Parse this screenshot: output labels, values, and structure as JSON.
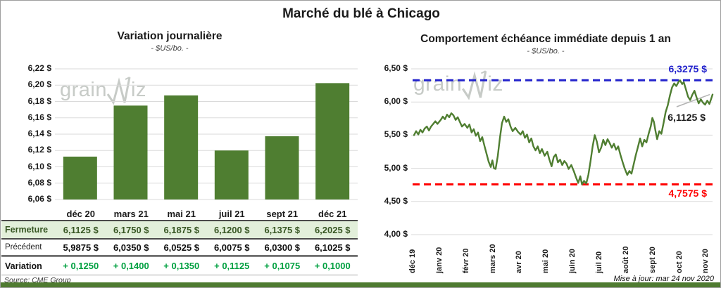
{
  "page": {
    "title": "Marché du blé à Chicago",
    "source": "Source: CME Group",
    "updated": "Mise à jour: mar 24 nov 2020",
    "watermark": {
      "part1": "grain",
      "part2": "iz"
    }
  },
  "colors": {
    "bar_green": "#4f7e31",
    "line_green": "#4f7e31",
    "upper_bound_blue": "#2222cc",
    "lower_bound_red": "#ff0000",
    "fermeture_row_bg": "#e2efda",
    "fermeture_text": "#375623",
    "variation_text": "#00a040",
    "gridline": "#dadada",
    "watermark_gray": "#c7cbc7"
  },
  "table": {
    "columns": [
      "déc 20",
      "mars 21",
      "mai 21",
      "juil 21",
      "sept 21",
      "déc 21"
    ],
    "rows": [
      {
        "label": "Fermeture",
        "values": [
          "6,1125 $",
          "6,1750 $",
          "6,1875 $",
          "6,1200 $",
          "6,1375 $",
          "6,2025 $"
        ]
      },
      {
        "label": "Précédent",
        "values": [
          "5,9875 $",
          "6,0350 $",
          "6,0525 $",
          "6,0075 $",
          "6,0300 $",
          "6,1025 $"
        ]
      },
      {
        "label": "Variation",
        "values": [
          "+ 0,1250",
          "+ 0,1400",
          "+ 0,1350",
          "+ 0,1125",
          "+ 0,1075",
          "+ 0,1000"
        ]
      }
    ]
  },
  "chart_data": [
    {
      "type": "bar",
      "title": "Variation journalière",
      "subtitle": "- $US/bo. -",
      "categories": [
        "déc 20",
        "mars 21",
        "mai 21",
        "juil 21",
        "sept 21",
        "déc 21"
      ],
      "values": [
        6.1125,
        6.175,
        6.1875,
        6.12,
        6.1375,
        6.2025
      ],
      "ylabel": "$US/bo.",
      "ylim": [
        6.06,
        6.22
      ],
      "grid": true,
      "yticks": [
        {
          "v": 6.22,
          "label": "6,22 $"
        },
        {
          "v": 6.2,
          "label": "6,20 $"
        },
        {
          "v": 6.18,
          "label": "6,18 $"
        },
        {
          "v": 6.16,
          "label": "6,16 $"
        },
        {
          "v": 6.14,
          "label": "6,14 $"
        },
        {
          "v": 6.12,
          "label": "6,12 $"
        },
        {
          "v": 6.1,
          "label": "6,10 $"
        },
        {
          "v": 6.08,
          "label": "6,08 $"
        },
        {
          "v": 6.06,
          "label": "6,06 $"
        }
      ]
    },
    {
      "type": "line",
      "title": "Comportement échéance immédiate depuis 1 an",
      "subtitle": "- $US/bo. -",
      "ylabel": "$US/bo.",
      "ylim": [
        4.0,
        6.5
      ],
      "xlim_months": [
        0,
        11.2
      ],
      "grid": true,
      "yticks": [
        {
          "v": 6.5,
          "label": "6,50 $"
        },
        {
          "v": 6.0,
          "label": "6,00 $"
        },
        {
          "v": 5.5,
          "label": "5,50 $"
        },
        {
          "v": 5.0,
          "label": "5,00 $"
        },
        {
          "v": 4.5,
          "label": "4,50 $"
        },
        {
          "v": 4.0,
          "label": "4,00 $"
        }
      ],
      "xticks": [
        {
          "m": 0,
          "label": "déc 19"
        },
        {
          "m": 1,
          "label": "janv 20"
        },
        {
          "m": 2,
          "label": "févr 20"
        },
        {
          "m": 3,
          "label": "mars 20"
        },
        {
          "m": 4,
          "label": "avr 20"
        },
        {
          "m": 5,
          "label": "mai 20"
        },
        {
          "m": 6,
          "label": "juin 20"
        },
        {
          "m": 7,
          "label": "juil 20"
        },
        {
          "m": 8,
          "label": "août 20"
        },
        {
          "m": 9,
          "label": "sept 20"
        },
        {
          "m": 10,
          "label": "oct 20"
        },
        {
          "m": 11,
          "label": "nov 20"
        }
      ],
      "ref_lines": [
        {
          "v": 6.3275,
          "label": "6,3275 $",
          "color": "#2222cc",
          "position": "max"
        },
        {
          "v": 4.7575,
          "label": "4,7575 $",
          "color": "#ff0000",
          "position": "min"
        }
      ],
      "last_label": {
        "v": 6.1125,
        "label": "6,1125 $"
      },
      "points": [
        [
          0,
          5.5
        ],
        [
          0.08,
          5.56
        ],
        [
          0.16,
          5.51
        ],
        [
          0.24,
          5.58
        ],
        [
          0.32,
          5.54
        ],
        [
          0.4,
          5.6
        ],
        [
          0.48,
          5.63
        ],
        [
          0.56,
          5.57
        ],
        [
          0.64,
          5.63
        ],
        [
          0.72,
          5.67
        ],
        [
          0.8,
          5.71
        ],
        [
          0.88,
          5.67
        ],
        [
          1.0,
          5.73
        ],
        [
          1.08,
          5.78
        ],
        [
          1.16,
          5.74
        ],
        [
          1.24,
          5.81
        ],
        [
          1.32,
          5.77
        ],
        [
          1.4,
          5.83
        ],
        [
          1.48,
          5.8
        ],
        [
          1.56,
          5.73
        ],
        [
          1.64,
          5.77
        ],
        [
          1.72,
          5.7
        ],
        [
          1.8,
          5.63
        ],
        [
          1.9,
          5.67
        ],
        [
          2.0,
          5.61
        ],
        [
          2.08,
          5.66
        ],
        [
          2.16,
          5.54
        ],
        [
          2.24,
          5.59
        ],
        [
          2.32,
          5.49
        ],
        [
          2.4,
          5.54
        ],
        [
          2.48,
          5.41
        ],
        [
          2.56,
          5.47
        ],
        [
          2.64,
          5.34
        ],
        [
          2.72,
          5.22
        ],
        [
          2.8,
          5.1
        ],
        [
          2.88,
          5.02
        ],
        [
          2.94,
          5.12
        ],
        [
          3.0,
          5.0
        ],
        [
          3.06,
          4.99
        ],
        [
          3.14,
          5.18
        ],
        [
          3.22,
          5.45
        ],
        [
          3.3,
          5.68
        ],
        [
          3.38,
          5.78
        ],
        [
          3.46,
          5.7
        ],
        [
          3.54,
          5.74
        ],
        [
          3.62,
          5.63
        ],
        [
          3.7,
          5.56
        ],
        [
          3.8,
          5.61
        ],
        [
          3.9,
          5.55
        ],
        [
          4.0,
          5.51
        ],
        [
          4.08,
          5.56
        ],
        [
          4.16,
          5.46
        ],
        [
          4.24,
          5.51
        ],
        [
          4.32,
          5.39
        ],
        [
          4.4,
          5.45
        ],
        [
          4.48,
          5.33
        ],
        [
          4.56,
          5.27
        ],
        [
          4.64,
          5.33
        ],
        [
          4.72,
          5.23
        ],
        [
          4.8,
          5.29
        ],
        [
          4.9,
          5.19
        ],
        [
          5.0,
          5.25
        ],
        [
          5.08,
          5.13
        ],
        [
          5.16,
          5.03
        ],
        [
          5.24,
          5.17
        ],
        [
          5.32,
          5.21
        ],
        [
          5.4,
          5.09
        ],
        [
          5.48,
          5.13
        ],
        [
          5.56,
          5.05
        ],
        [
          5.64,
          5.11
        ],
        [
          5.72,
          5.07
        ],
        [
          5.8,
          4.99
        ],
        [
          5.9,
          5.05
        ],
        [
          6.0,
          4.95
        ],
        [
          6.08,
          4.86
        ],
        [
          6.16,
          4.78
        ],
        [
          6.24,
          4.88
        ],
        [
          6.3,
          4.758
        ],
        [
          6.38,
          4.81
        ],
        [
          6.46,
          4.77
        ],
        [
          6.54,
          4.9
        ],
        [
          6.62,
          5.1
        ],
        [
          6.7,
          5.33
        ],
        [
          6.78,
          5.5
        ],
        [
          6.86,
          5.4
        ],
        [
          6.94,
          5.24
        ],
        [
          7.02,
          5.31
        ],
        [
          7.1,
          5.43
        ],
        [
          7.18,
          5.35
        ],
        [
          7.26,
          5.44
        ],
        [
          7.34,
          5.38
        ],
        [
          7.42,
          5.31
        ],
        [
          7.5,
          5.37
        ],
        [
          7.58,
          5.28
        ],
        [
          7.66,
          5.33
        ],
        [
          7.74,
          5.21
        ],
        [
          7.82,
          5.1
        ],
        [
          7.9,
          5.0
        ],
        [
          8.0,
          4.9
        ],
        [
          8.08,
          4.96
        ],
        [
          8.16,
          4.92
        ],
        [
          8.24,
          5.06
        ],
        [
          8.32,
          5.2
        ],
        [
          8.4,
          5.32
        ],
        [
          8.48,
          5.45
        ],
        [
          8.56,
          5.33
        ],
        [
          8.64,
          5.43
        ],
        [
          8.72,
          5.39
        ],
        [
          8.8,
          5.52
        ],
        [
          8.88,
          5.63
        ],
        [
          8.94,
          5.76
        ],
        [
          9.0,
          5.7
        ],
        [
          9.06,
          5.56
        ],
        [
          9.12,
          5.44
        ],
        [
          9.2,
          5.56
        ],
        [
          9.28,
          5.52
        ],
        [
          9.36,
          5.68
        ],
        [
          9.44,
          5.85
        ],
        [
          9.52,
          5.95
        ],
        [
          9.6,
          6.1
        ],
        [
          9.68,
          6.22
        ],
        [
          9.76,
          6.28
        ],
        [
          9.84,
          6.24
        ],
        [
          9.92,
          6.3
        ],
        [
          9.98,
          6.3275
        ],
        [
          10.06,
          6.27
        ],
        [
          10.12,
          6.3
        ],
        [
          10.2,
          6.19
        ],
        [
          10.28,
          6.08
        ],
        [
          10.36,
          6.03
        ],
        [
          10.44,
          6.11
        ],
        [
          10.52,
          6.17
        ],
        [
          10.6,
          6.07
        ],
        [
          10.68,
          5.98
        ],
        [
          10.76,
          6.04
        ],
        [
          10.84,
          5.99
        ],
        [
          10.92,
          5.96
        ],
        [
          11.0,
          6.02
        ],
        [
          11.08,
          5.97
        ],
        [
          11.14,
          6.04
        ],
        [
          11.2,
          6.1125
        ]
      ]
    }
  ]
}
